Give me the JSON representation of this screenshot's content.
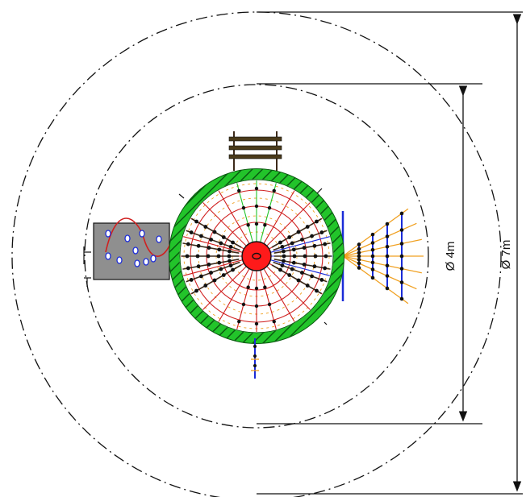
{
  "dimensions": {
    "inner_diameter_label": "Ø 4m",
    "outer_diameter_label": "Ø 7m"
  },
  "colors": {
    "ring_green": "#22c42a",
    "hub_red": "#ff1a1a",
    "net_blue": "#1a2bd8",
    "rope_orange": "#f0a020",
    "panel_gray": "#8f8f8f",
    "spring_red": "#d02020",
    "rung_dark": "#3c2a1a",
    "line_black": "#111111"
  }
}
